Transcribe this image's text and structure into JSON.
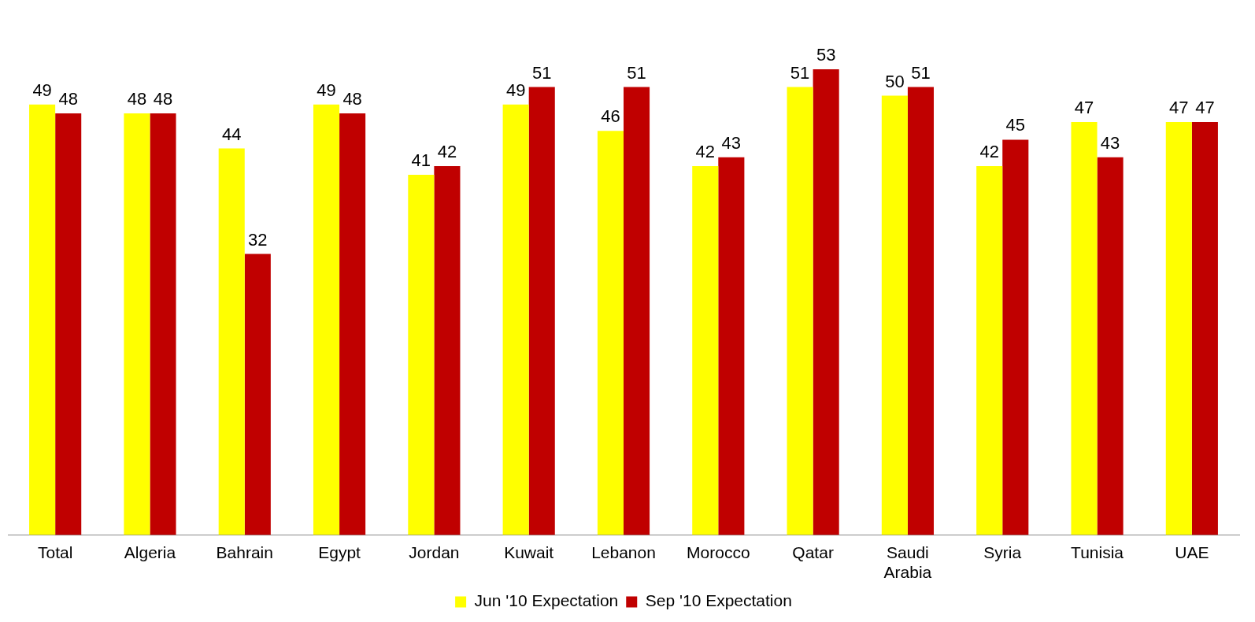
{
  "chart_data": {
    "type": "bar",
    "categories": [
      "Total",
      "Algeria",
      "Bahrain",
      "Egypt",
      "Jordan",
      "Kuwait",
      "Lebanon",
      "Morocco",
      "Qatar",
      "Saudi Arabia",
      "Syria",
      "Tunisia",
      "UAE"
    ],
    "series": [
      {
        "name": "Jun '10 Expectation",
        "color": "#ffff00",
        "values": [
          49,
          48,
          44,
          49,
          41,
          49,
          46,
          42,
          51,
          50,
          42,
          47,
          47
        ]
      },
      {
        "name": "Sep '10 Expectation",
        "color": "#c00000",
        "values": [
          48,
          48,
          32,
          48,
          42,
          51,
          51,
          43,
          53,
          51,
          45,
          43,
          47
        ]
      }
    ],
    "data_labels": true,
    "legend": "bottom",
    "grid": false,
    "tick_labels": "x"
  }
}
